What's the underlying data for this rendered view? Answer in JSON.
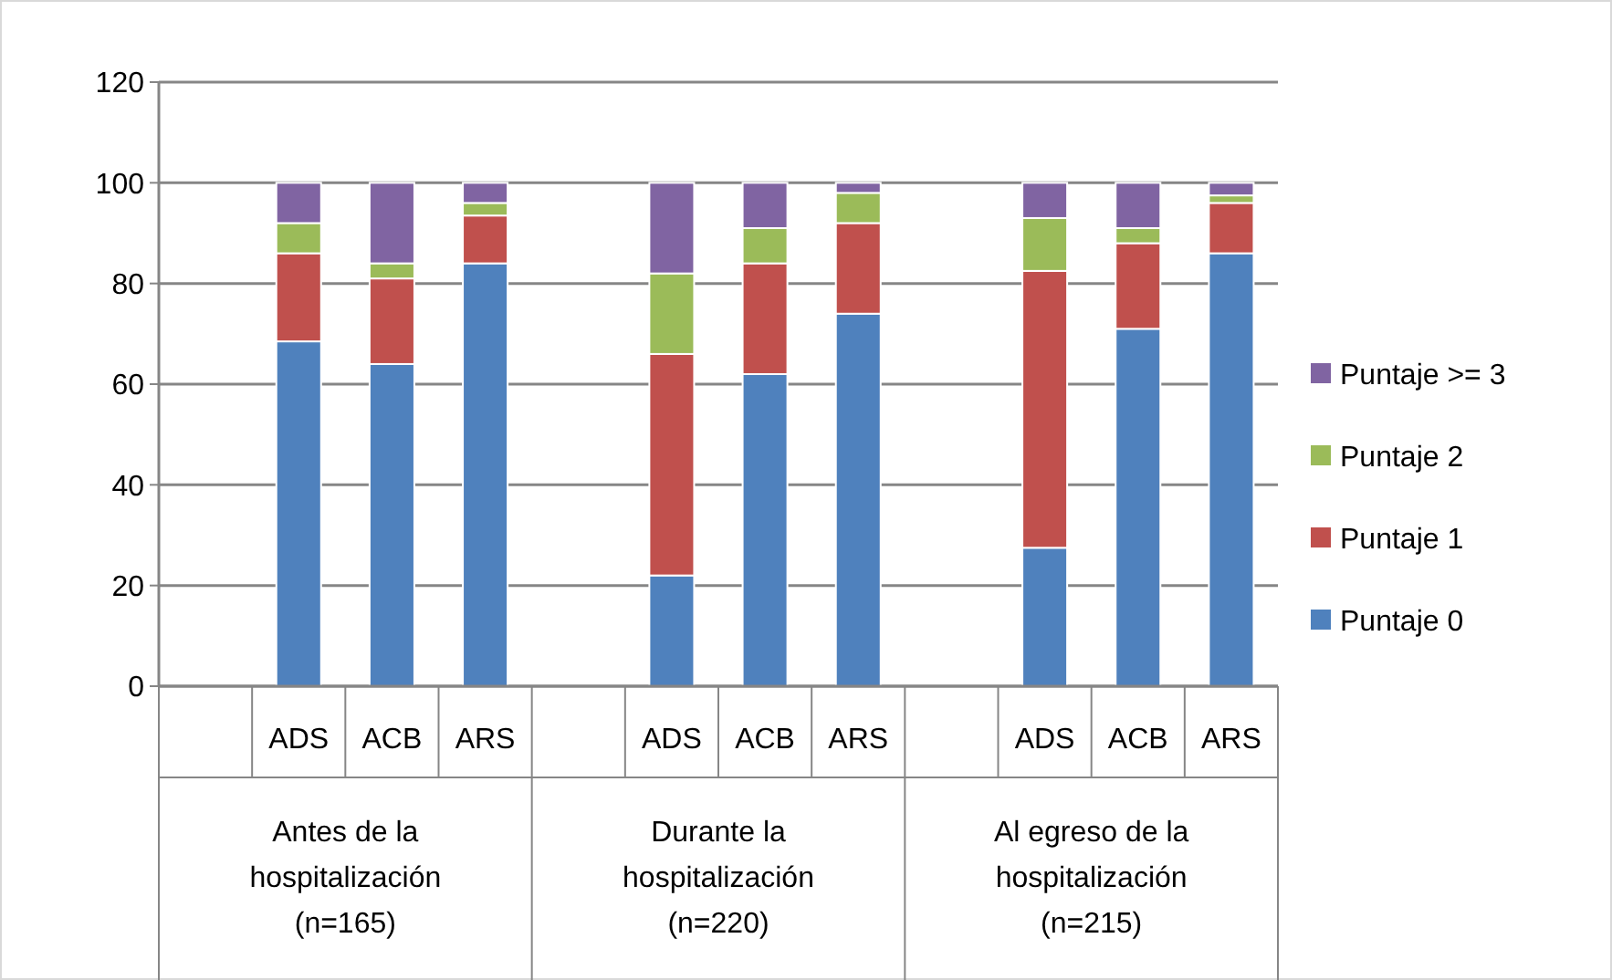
{
  "chart_data": {
    "type": "bar",
    "stacked": true,
    "categories": [
      null,
      "ADS",
      "ACB",
      "ARS",
      null,
      "ADS",
      "ACB",
      "ARS",
      null,
      "ADS",
      "ACB",
      "ARS"
    ],
    "series": [
      {
        "name": "Puntaje 0",
        "color": "#4f81bd",
        "values": [
          null,
          68.5,
          64,
          84,
          null,
          22,
          62,
          74,
          null,
          27.5,
          71,
          86
        ]
      },
      {
        "name": "Puntaje 1",
        "color": "#c0504d",
        "values": [
          null,
          17.5,
          17,
          9.5,
          null,
          44,
          22,
          18,
          null,
          55,
          17,
          10
        ]
      },
      {
        "name": "Puntaje 2",
        "color": "#9bbb59",
        "values": [
          null,
          6,
          3,
          2.5,
          null,
          16,
          7,
          6,
          null,
          10.5,
          3,
          1.5
        ]
      },
      {
        "name": "Puntaje >= 3",
        "color": "#8064a2",
        "values": [
          null,
          8,
          16,
          4,
          null,
          18,
          9,
          2,
          null,
          7,
          9,
          2.5
        ]
      }
    ],
    "annotations": [
      "Antes de la hospitalización (n=165)",
      "Durante la hospitalización (n=220)",
      "Al egreso de la hospitalización (n=215)"
    ],
    "ylim": [
      0,
      120
    ],
    "yticks": [
      0,
      20,
      40,
      60,
      80,
      100,
      120
    ],
    "grid": "y",
    "legend": "right"
  }
}
